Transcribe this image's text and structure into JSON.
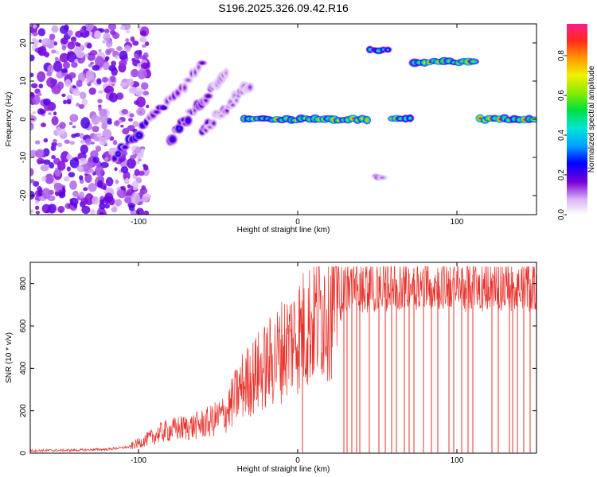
{
  "title": "S196.2025.326.09.42.R16",
  "chart_data": [
    {
      "type": "heatmap",
      "xlabel": "Height of straight line (km)",
      "ylabel": "Frequency (Hz)",
      "xlim": [
        -168,
        150
      ],
      "ylim": [
        -25,
        25
      ],
      "xticks": [
        -100,
        0,
        100
      ],
      "yticks": [
        -20,
        -10,
        0,
        10,
        20
      ],
      "colorbar": {
        "label": "Normalized spectral amplitude",
        "range": [
          0,
          0.96
        ],
        "ticks": [
          "0.0",
          "0.2",
          "0.4",
          "0.6",
          "0.8"
        ],
        "tick_values": [
          0,
          0.2,
          0.4,
          0.6,
          0.8
        ]
      },
      "features": [
        {
          "name": "noise-region",
          "x_range": [
            -168,
            -100
          ],
          "freq_range": [
            -25,
            25
          ],
          "amplitude": 0.1
        },
        {
          "name": "rising-streak-1",
          "x_range": [
            -115,
            -60
          ],
          "freq_range": [
            -10,
            14
          ],
          "amplitude": 0.3
        },
        {
          "name": "rising-streak-2",
          "x_range": [
            -80,
            -45
          ],
          "freq_range": [
            -5,
            12
          ],
          "amplitude": 0.25
        },
        {
          "name": "rising-streak-3",
          "x_range": [
            -60,
            -30
          ],
          "freq_range": [
            -3,
            9
          ],
          "amplitude": 0.2
        },
        {
          "name": "zero-line-a",
          "x_range": [
            -35,
            45
          ],
          "freq": 0,
          "amplitude": 0.85
        },
        {
          "name": "zero-line-b",
          "x_range": [
            58,
            72
          ],
          "freq": 0,
          "amplitude": 0.8
        },
        {
          "name": "upper-line",
          "x_range": [
            44,
            58
          ],
          "freq": 18,
          "amplitude": 0.6
        },
        {
          "name": "lower-blob",
          "x_range": [
            48,
            54
          ],
          "freq": -15,
          "amplitude": 0.2
        },
        {
          "name": "high-line",
          "x_range": [
            72,
            112
          ],
          "freq": 15,
          "amplitude": 0.9
        },
        {
          "name": "zero-line-c",
          "x_range": [
            113,
            150
          ],
          "freq": 0,
          "amplitude": 0.95
        }
      ]
    },
    {
      "type": "line",
      "xlabel": "Height of straight line (km)",
      "ylabel": "SNR (10 * v/v)",
      "xlim": [
        -168,
        150
      ],
      "ylim": [
        0,
        900
      ],
      "xticks": [
        -100,
        0,
        100
      ],
      "yticks": [
        0,
        200,
        400,
        600,
        800
      ],
      "color": "#e8312b",
      "envelope": {
        "x": [
          -168,
          -140,
          -120,
          -105,
          -95,
          -85,
          -75,
          -65,
          -55,
          -45,
          -35,
          -25,
          -15,
          -5,
          5,
          15,
          25,
          35,
          50,
          70,
          90,
          110,
          130,
          150
        ],
        "y": [
          12,
          14,
          18,
          30,
          60,
          95,
          110,
          120,
          140,
          180,
          300,
          360,
          420,
          500,
          560,
          640,
          700,
          730,
          740,
          745,
          745,
          740,
          745,
          740
        ]
      },
      "spike_top": 880,
      "dropouts_to_zero": [
        3,
        29,
        31,
        34,
        37,
        39,
        45,
        51,
        55,
        59,
        62,
        67,
        70,
        73,
        79,
        84,
        88,
        95,
        98,
        103,
        107,
        110,
        122,
        126,
        133,
        135,
        138,
        142,
        146
      ]
    }
  ]
}
